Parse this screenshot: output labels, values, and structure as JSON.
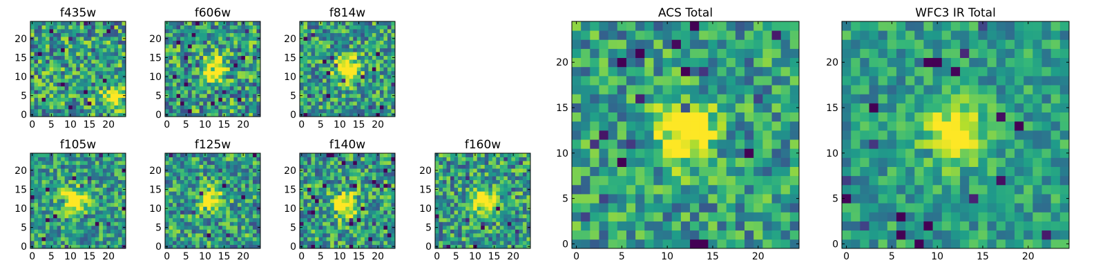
{
  "chart_data": [
    {
      "type": "heatmap",
      "title": "f435w",
      "xticks": [
        "0",
        "5",
        "10",
        "15",
        "20"
      ],
      "yticks": [
        "0",
        "5",
        "10",
        "15",
        "20"
      ],
      "xlim": [
        -0.5,
        24.5
      ],
      "ylim": [
        -0.5,
        24.5
      ],
      "grid_size": 25,
      "colormap": "viridis",
      "source_center": [
        21,
        5
      ],
      "source_strength": 0.55,
      "noise": 0.5,
      "seed": 11
    },
    {
      "type": "heatmap",
      "title": "f606w",
      "xticks": [
        "0",
        "5",
        "10",
        "15",
        "20"
      ],
      "yticks": [
        "0",
        "5",
        "10",
        "15",
        "20"
      ],
      "xlim": [
        -0.5,
        24.5
      ],
      "ylim": [
        -0.5,
        24.5
      ],
      "grid_size": 25,
      "colormap": "viridis",
      "source_center": [
        12,
        12
      ],
      "source_strength": 0.6,
      "noise": 0.5,
      "seed": 23
    },
    {
      "type": "heatmap",
      "title": "f814w",
      "xticks": [
        "0",
        "5",
        "10",
        "15",
        "20"
      ],
      "yticks": [
        "0",
        "5",
        "10",
        "15",
        "20"
      ],
      "xlim": [
        -0.5,
        24.5
      ],
      "ylim": [
        -0.5,
        24.5
      ],
      "grid_size": 25,
      "colormap": "viridis",
      "source_center": [
        12,
        12
      ],
      "source_strength": 0.75,
      "noise": 0.45,
      "seed": 37
    },
    {
      "type": "heatmap",
      "title": "f105w",
      "xticks": [
        "0",
        "5",
        "10",
        "15",
        "20"
      ],
      "yticks": [
        "0",
        "5",
        "10",
        "15",
        "20"
      ],
      "xlim": [
        -0.5,
        24.5
      ],
      "ylim": [
        -0.5,
        24.5
      ],
      "grid_size": 25,
      "colormap": "viridis",
      "source_center": [
        11,
        12
      ],
      "source_strength": 0.7,
      "noise": 0.4,
      "seed": 41
    },
    {
      "type": "heatmap",
      "title": "f125w",
      "xticks": [
        "0",
        "5",
        "10",
        "15",
        "20"
      ],
      "yticks": [
        "0",
        "5",
        "10",
        "15",
        "20"
      ],
      "xlim": [
        -0.5,
        24.5
      ],
      "ylim": [
        -0.5,
        24.5
      ],
      "grid_size": 25,
      "colormap": "viridis",
      "source_center": [
        12,
        12
      ],
      "source_strength": 0.55,
      "noise": 0.45,
      "seed": 53
    },
    {
      "type": "heatmap",
      "title": "f140w",
      "xticks": [
        "0",
        "5",
        "10",
        "15",
        "20"
      ],
      "yticks": [
        "0",
        "5",
        "10",
        "15",
        "20"
      ],
      "xlim": [
        -0.5,
        24.5
      ],
      "ylim": [
        -0.5,
        24.5
      ],
      "grid_size": 25,
      "colormap": "viridis",
      "source_center": [
        11,
        11
      ],
      "source_strength": 0.7,
      "noise": 0.45,
      "seed": 67
    },
    {
      "type": "heatmap",
      "title": "f160w",
      "xticks": [
        "0",
        "5",
        "10",
        "15",
        "20"
      ],
      "yticks": [
        "0",
        "5",
        "10",
        "15",
        "20"
      ],
      "xlim": [
        -0.5,
        24.5
      ],
      "ylim": [
        -0.5,
        24.5
      ],
      "grid_size": 25,
      "colormap": "viridis",
      "source_center": [
        12,
        12
      ],
      "source_strength": 0.7,
      "noise": 0.45,
      "seed": 79
    },
    {
      "type": "heatmap",
      "title": "ACS Total",
      "xticks": [
        "0",
        "5",
        "10",
        "15",
        "20"
      ],
      "yticks": [
        "0",
        "5",
        "10",
        "15",
        "20"
      ],
      "xlim": [
        -0.5,
        24.5
      ],
      "ylim": [
        -0.5,
        24.5
      ],
      "grid_size": 25,
      "colormap": "viridis",
      "source_center": [
        12,
        12
      ],
      "source_strength": 0.7,
      "noise": 0.4,
      "seed": 97
    },
    {
      "type": "heatmap",
      "title": "WFC3 IR Total",
      "xticks": [
        "0",
        "5",
        "10",
        "15",
        "20"
      ],
      "yticks": [
        "0",
        "5",
        "10",
        "15",
        "20"
      ],
      "xlim": [
        -0.5,
        24.5
      ],
      "ylim": [
        -0.5,
        24.5
      ],
      "grid_size": 25,
      "colormap": "viridis",
      "source_center": [
        12,
        12
      ],
      "source_strength": 0.65,
      "noise": 0.3,
      "seed": 113
    }
  ]
}
